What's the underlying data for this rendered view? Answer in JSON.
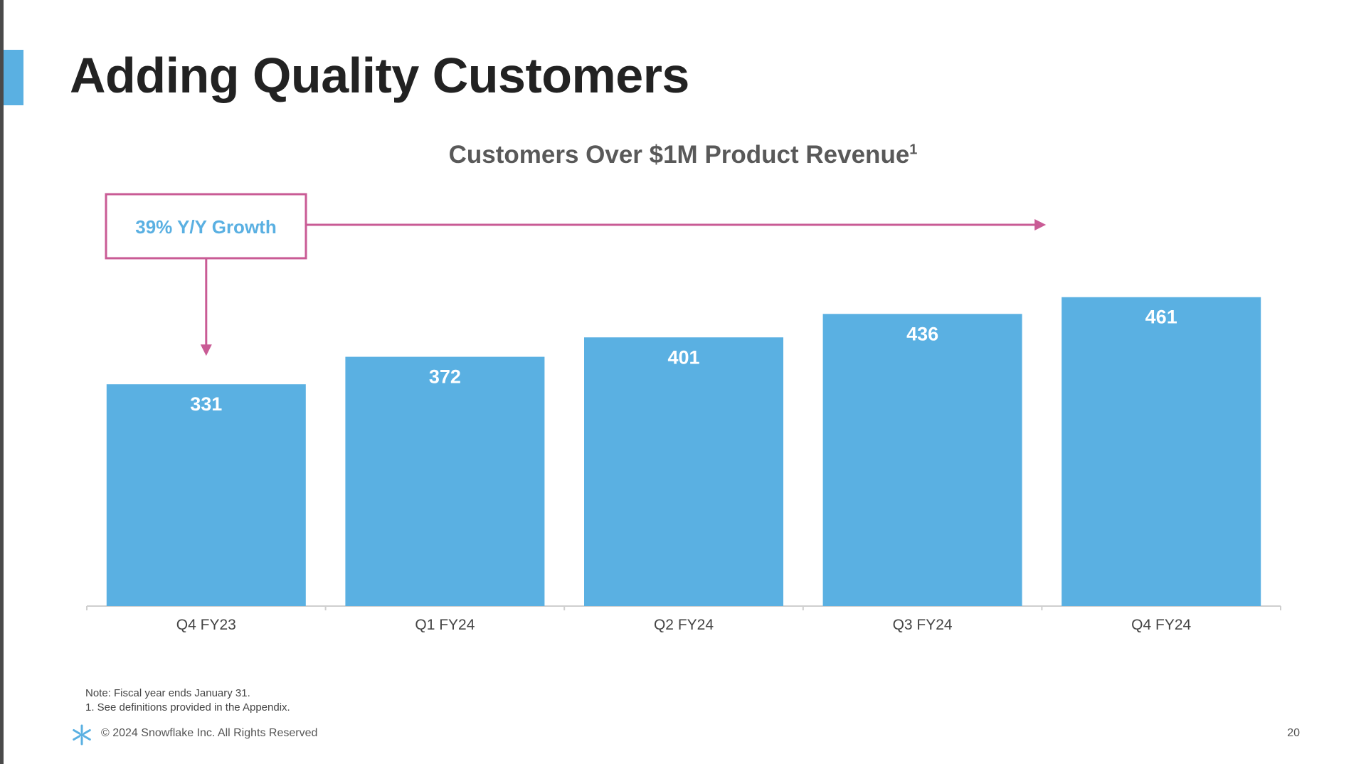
{
  "slide": {
    "title": "Adding Quality Customers",
    "page_number": "20",
    "copyright": "© 2024 Snowflake Inc. All Rights Reserved",
    "notes": [
      "Note: Fiscal year ends January 31.",
      "1.  See definitions provided in the Appendix."
    ],
    "logo_icon": "snowflake-logo-icon"
  },
  "colors": {
    "bar": "#5ab0e2",
    "callout": "#c95b95",
    "callout_text": "#5ab0e2",
    "axis_text": "#444444"
  },
  "chart_data": {
    "type": "bar",
    "title": "Customers Over $1M Product Revenue",
    "title_superscript": "1",
    "categories": [
      "Q4 FY23",
      "Q1 FY24",
      "Q2 FY24",
      "Q3 FY24",
      "Q4 FY24"
    ],
    "values": [
      331,
      372,
      401,
      436,
      461
    ],
    "data_labels": [
      "331",
      "372",
      "401",
      "436",
      "461"
    ],
    "xlabel": "",
    "ylabel": "",
    "grid": false,
    "annotation": {
      "text": "39% Y/Y Growth",
      "from_category": "Q4 FY23",
      "to_category": "Q4 FY24"
    }
  }
}
